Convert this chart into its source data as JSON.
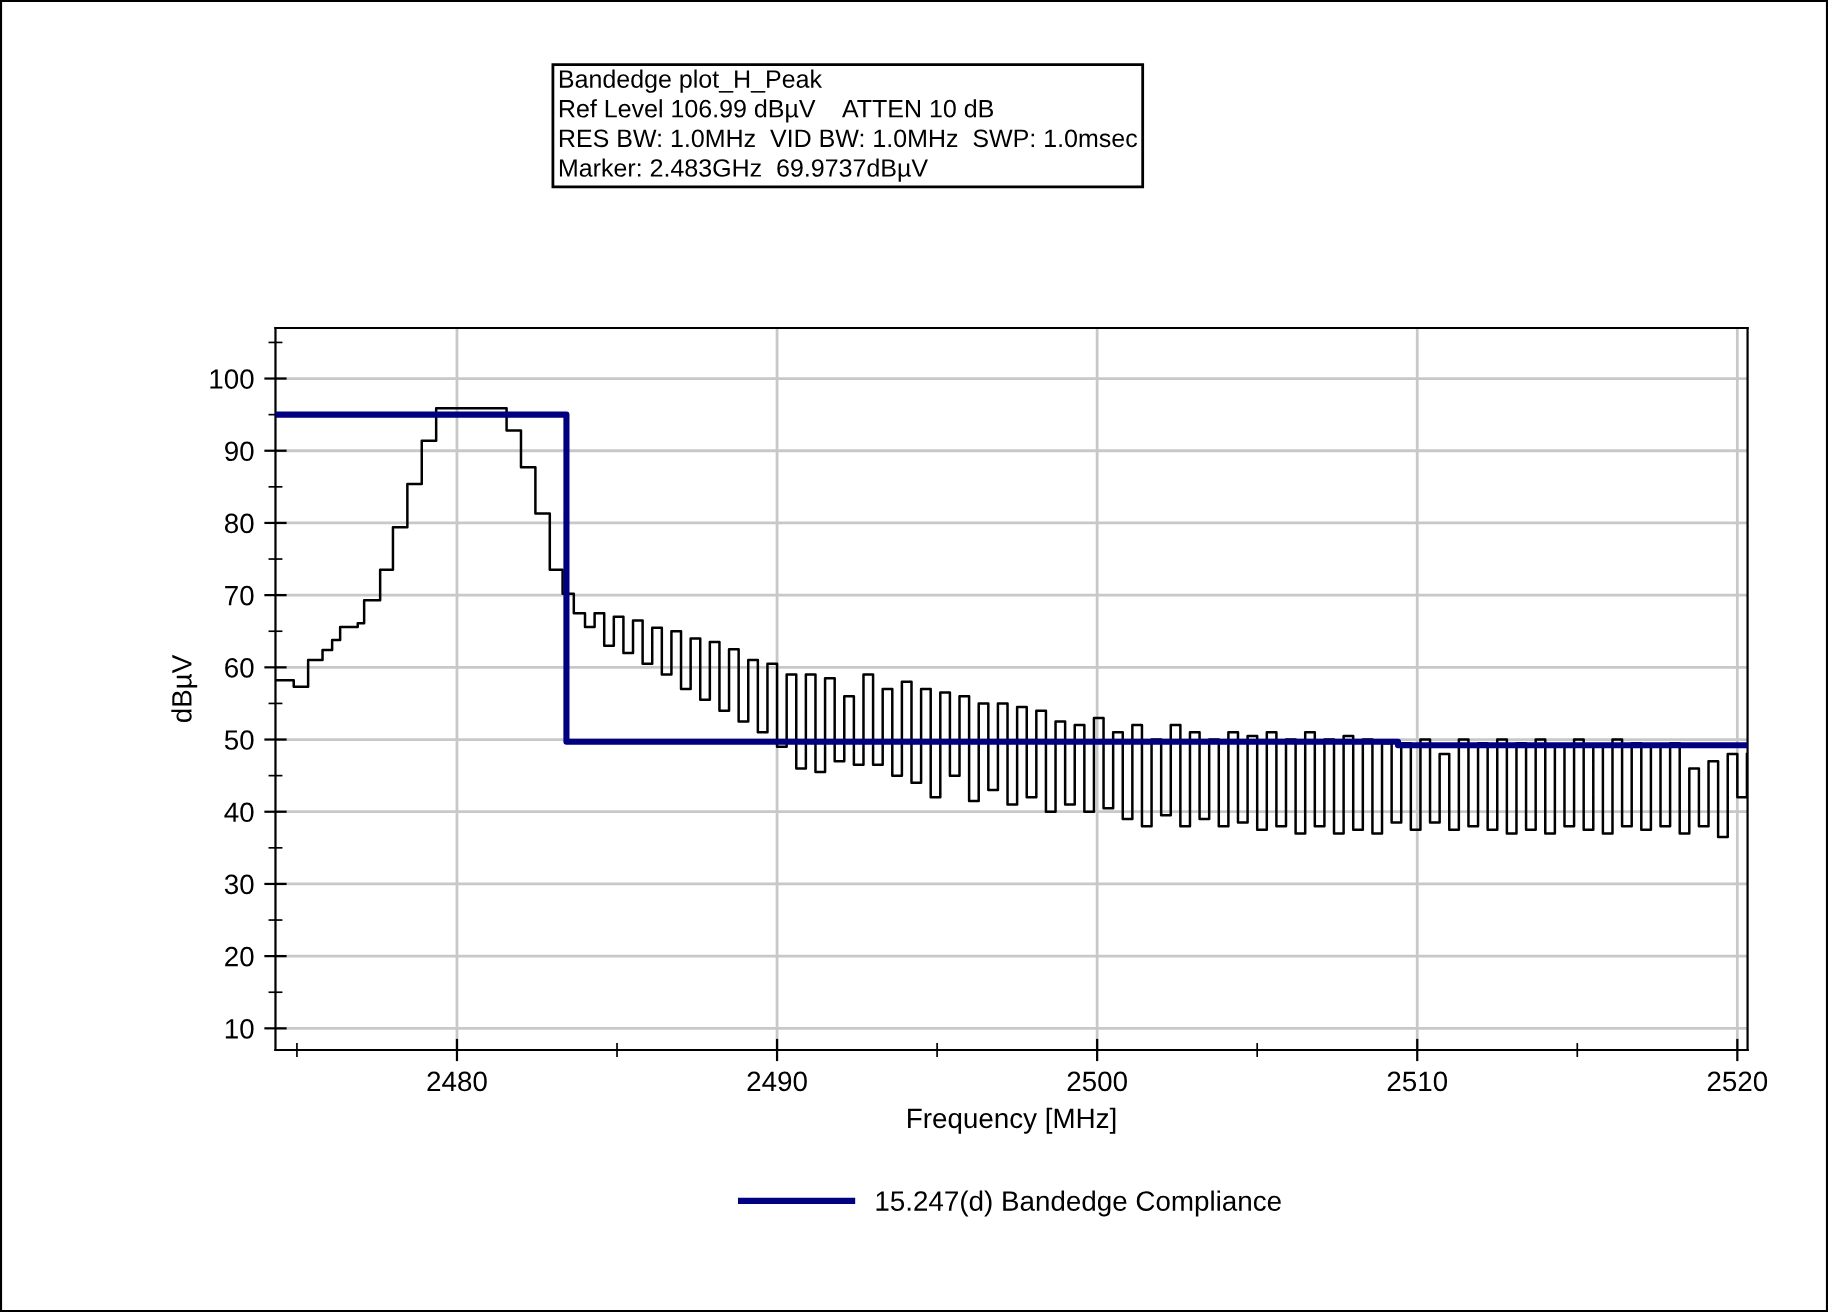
{
  "chart_data": {
    "type": "step",
    "annotations": [
      "Bandedge plot_H_Peak",
      "Ref Level 106.99 dBµV    ATTEN 10 dB",
      "RES BW: 1.0MHz  VID BW: 1.0MHz  SWP: 1.0msec",
      "Marker: 2.483GHz  69.9737dBµV"
    ],
    "xlabel": "Frequency [MHz]",
    "ylabel": "dBµV",
    "xlim": [
      2474.33,
      2520.32
    ],
    "ylim": [
      7,
      107
    ],
    "xticks": [
      {
        "value": 2475,
        "label": null
      },
      2480,
      {
        "value": 2485,
        "label": null
      },
      2490,
      {
        "value": 2495,
        "label": null
      },
      2500,
      {
        "value": 2505,
        "label": null
      },
      2510,
      {
        "value": 2515,
        "label": null
      },
      2520
    ],
    "yticks": [
      10,
      {
        "value": 15,
        "label": null
      },
      20,
      {
        "value": 25,
        "label": null
      },
      30,
      {
        "value": 35,
        "label": null
      },
      40,
      {
        "value": 45,
        "label": null
      },
      50,
      {
        "value": 55,
        "label": null
      },
      60,
      {
        "value": 65,
        "label": null
      },
      70,
      {
        "value": 75,
        "label": null
      },
      80,
      {
        "value": 85,
        "label": null
      },
      90,
      {
        "value": 95,
        "label": null
      },
      100,
      {
        "value": 105,
        "label": null
      }
    ],
    "grid": true,
    "legend": "bottom",
    "series": [
      {
        "color": "#000000",
        "x": [
          2474.33,
          2474.9,
          2475.35,
          2475.8,
          2476.1,
          2476.35,
          2476.9,
          2477.1,
          2477.6,
          2478.0,
          2478.45,
          2478.9,
          2479.35,
          2480.0,
          2481.1,
          2481.55,
          2482.0,
          2482.45,
          2482.9,
          2483.3,
          2483.65,
          2484.0,
          2484.3,
          2484.6,
          2484.9,
          2485.2,
          2485.5,
          2485.8,
          2486.1,
          2486.4,
          2486.7,
          2487.0,
          2487.3,
          2487.6,
          2487.9,
          2488.2,
          2488.5,
          2488.8,
          2489.1,
          2489.4,
          2489.7,
          2490.0,
          2490.3,
          2490.6,
          2490.9,
          2491.2,
          2491.5,
          2491.8,
          2492.1,
          2492.4,
          2492.7,
          2493.0,
          2493.3,
          2493.6,
          2493.9,
          2494.2,
          2494.5,
          2494.8,
          2495.1,
          2495.4,
          2495.7,
          2496.0,
          2496.3,
          2496.6,
          2496.9,
          2497.2,
          2497.5,
          2497.8,
          2498.1,
          2498.4,
          2498.7,
          2499.0,
          2499.3,
          2499.6,
          2499.9,
          2500.2,
          2500.5,
          2500.8,
          2501.1,
          2501.4,
          2501.7,
          2502.0,
          2502.3,
          2502.6,
          2502.9,
          2503.2,
          2503.5,
          2503.8,
          2504.1,
          2504.4,
          2504.7,
          2505.0,
          2505.3,
          2505.6,
          2505.9,
          2506.2,
          2506.5,
          2506.8,
          2507.1,
          2507.4,
          2507.7,
          2508.0,
          2508.3,
          2508.6,
          2508.9,
          2509.2,
          2509.5,
          2509.8,
          2510.1,
          2510.4,
          2510.7,
          2511.0,
          2511.3,
          2511.6,
          2511.9,
          2512.2,
          2512.5,
          2512.8,
          2513.1,
          2513.4,
          2513.7,
          2514.0,
          2514.3,
          2514.6,
          2514.9,
          2515.2,
          2515.5,
          2515.8,
          2516.1,
          2516.4,
          2516.7,
          2517.0,
          2517.3,
          2517.6,
          2517.9,
          2518.2,
          2518.5,
          2518.8,
          2519.1,
          2519.4,
          2519.7,
          2520.0,
          2520.3
        ],
        "values": [
          58.2,
          57.3,
          61,
          62.4,
          63.8,
          65.6,
          66.1,
          69.3,
          73.5,
          79.4,
          85.4,
          91.4,
          95.9,
          95.9,
          95.9,
          92.8,
          87.7,
          81.3,
          73.5,
          70.2,
          67.5,
          65.6,
          67.5,
          63,
          67,
          62,
          66.5,
          60.5,
          65.5,
          59,
          65,
          57,
          64,
          55.5,
          63.5,
          54,
          62.5,
          52.5,
          61,
          51,
          60.5,
          49,
          59,
          46,
          59,
          45.5,
          58.5,
          47,
          56,
          46.5,
          59,
          46.5,
          57,
          45,
          58,
          44,
          57,
          42,
          56.5,
          45,
          56,
          41.5,
          55,
          43,
          55,
          41,
          54.5,
          42,
          54,
          40,
          52.5,
          41,
          52,
          40,
          53,
          40.5,
          51,
          39,
          52,
          38,
          50,
          39.5,
          52,
          38,
          51,
          39,
          50,
          38,
          51,
          38.5,
          50.5,
          37.5,
          51,
          38,
          50,
          37,
          51,
          38,
          50,
          37,
          50.5,
          37.5,
          50,
          37,
          49.5,
          38.5,
          49.5,
          37.5,
          50,
          38.5,
          48,
          37.5,
          50,
          38,
          49.5,
          37.5,
          50,
          37,
          49.5,
          37.5,
          50,
          37,
          49,
          38,
          50,
          37.5,
          49,
          37,
          50,
          38,
          49.5,
          37.5,
          49,
          38,
          49.5,
          37,
          46,
          38,
          47,
          36.5,
          48,
          42,
          48
        ]
      },
      {
        "name": "15.247(d) Bandedge Compliance",
        "color": "#000080",
        "x": [
          2474.33,
          2483.42,
          2509.4,
          2520.32
        ],
        "values": [
          95,
          49.7,
          49.2,
          49.2
        ]
      }
    ]
  }
}
